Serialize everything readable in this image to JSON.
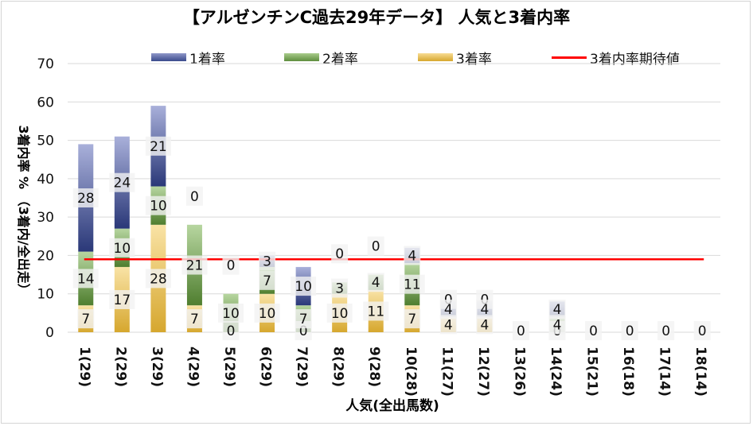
{
  "chart_data": {
    "type": "bar",
    "stacked": true,
    "title": "【アルゼンチンC過去29年データ】 人気と3着内率",
    "xlabel": "人気(全出馬数)",
    "ylabel": "3着内率 % （3着内/全出走）",
    "ylim": [
      0,
      70
    ],
    "yticks": [
      "0",
      "10",
      "20",
      "30",
      "40",
      "50",
      "60",
      "70"
    ],
    "grid": true,
    "legend_position": "top",
    "categories": [
      "1(29)",
      "2(29)",
      "3(29)",
      "4(29)",
      "5(29)",
      "6(29)",
      "7(29)",
      "8(29)",
      "9(28)",
      "10(28)",
      "11(27)",
      "12(27)",
      "13(26)",
      "14(24)",
      "15(21)",
      "16(18)",
      "17(14)",
      "18(14)"
    ],
    "series": [
      {
        "name": "3着率",
        "color": "#d6a72e",
        "values": [
          7,
          17,
          28,
          7,
          0,
          10,
          0,
          10,
          11,
          7,
          4,
          4,
          0,
          0,
          0,
          0,
          0,
          0
        ],
        "labels": [
          "7",
          "17",
          "28",
          "7",
          "0",
          "10",
          "0",
          "10",
          "11",
          "7",
          "4",
          "4",
          "0",
          "0",
          "0",
          "0",
          "0",
          "0"
        ]
      },
      {
        "name": "2着率",
        "color": "#5e8e3e",
        "values": [
          14,
          10,
          10,
          21,
          10,
          7,
          7,
          3,
          4,
          11,
          0,
          0,
          0,
          4,
          0,
          0,
          0,
          0
        ],
        "labels": [
          "14",
          "10",
          "10",
          "21",
          "10",
          "7",
          "7",
          "3",
          "4",
          "11",
          "0",
          "0",
          "",
          "4",
          "",
          "",
          "",
          ""
        ]
      },
      {
        "name": "1着率",
        "color": "#3a4a8c",
        "values": [
          28,
          24,
          21,
          0,
          0,
          3,
          10,
          0,
          0,
          4,
          4,
          4,
          0,
          4,
          0,
          0,
          0,
          0
        ],
        "labels": [
          "28",
          "24",
          "21",
          "0",
          "0",
          "3",
          "10",
          "0",
          "0",
          "4",
          "4",
          "4",
          "",
          "4",
          "",
          "",
          "",
          ""
        ]
      }
    ],
    "reference_line": {
      "name": "3着内率期待値",
      "value": 19,
      "color": "#ff0000"
    }
  },
  "legend": [
    {
      "label": "1着率",
      "color": "#3a4a8c",
      "kind": "bar"
    },
    {
      "label": "2着率",
      "color": "#5e8e3e",
      "kind": "bar"
    },
    {
      "label": "3着率",
      "color": "#d6a72e",
      "kind": "bar"
    },
    {
      "label": "3着内率期待値",
      "color": "#ff0000",
      "kind": "line"
    }
  ]
}
